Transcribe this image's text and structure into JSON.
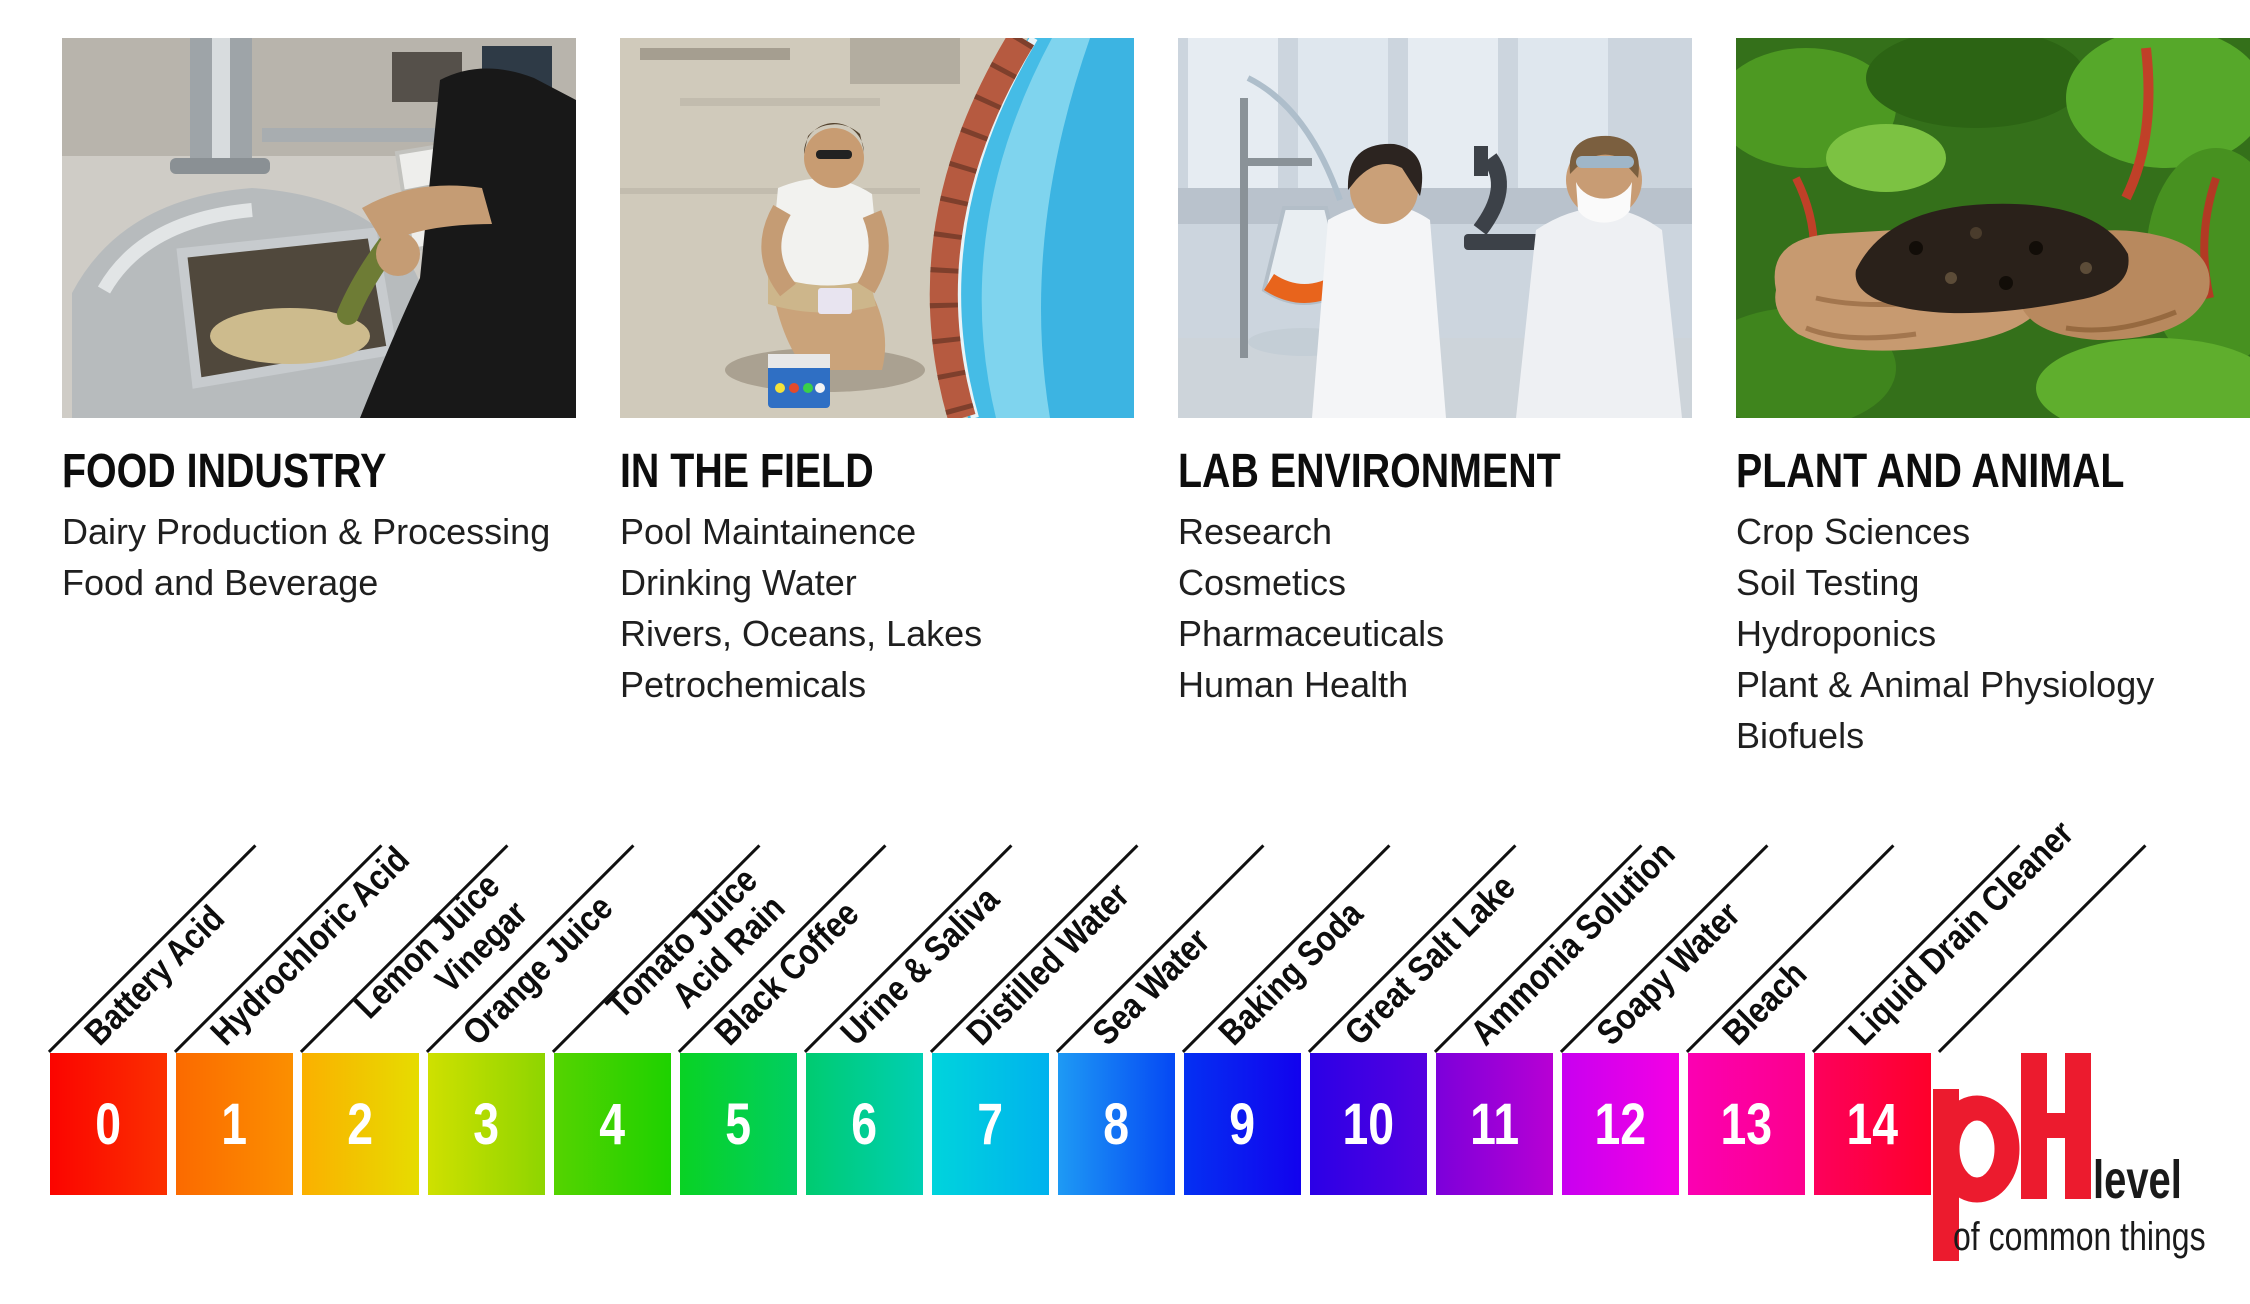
{
  "sections": [
    {
      "title": "FOOD INDUSTRY",
      "photo": "brewery-pouring-hops",
      "items": [
        "Dairy Production & Processing",
        "Food and Beverage"
      ]
    },
    {
      "title": "IN THE FIELD",
      "photo": "pool-water-testing",
      "items": [
        "Pool Maintainence",
        "Drinking Water",
        "Rivers, Oceans, Lakes",
        "Petrochemicals"
      ]
    },
    {
      "title": "LAB ENVIRONMENT",
      "photo": "laboratory-researchers",
      "items": [
        "Research",
        "Cosmetics",
        "Pharmaceuticals",
        "Human Health"
      ]
    },
    {
      "title": "PLANT AND ANIMAL",
      "photo": "hands-holding-soil",
      "items": [
        "Crop Sciences",
        "Soil Testing",
        "Hydroponics",
        "Plant & Animal Physiology",
        "Biofuels"
      ]
    }
  ],
  "scale": {
    "number_color": "#ffffff",
    "line_color": "#101010",
    "levels": [
      {
        "ph": "0",
        "label_lines": [
          "Battery Acid"
        ],
        "color_start": "#fb0400",
        "color_end": "#fb3000"
      },
      {
        "ph": "1",
        "label_lines": [
          "Hydrochloric Acid"
        ],
        "color_start": "#fb6a00",
        "color_end": "#fb8f00"
      },
      {
        "ph": "2",
        "label_lines": [
          "Lemon Juice",
          "Vinegar"
        ],
        "color_start": "#fbb000",
        "color_end": "#e6dc00"
      },
      {
        "ph": "3",
        "label_lines": [
          "Orange Juice"
        ],
        "color_start": "#cfe000",
        "color_end": "#8ed500"
      },
      {
        "ph": "4",
        "label_lines": [
          "Tomato Juice",
          "Acid Rain"
        ],
        "color_start": "#55d300",
        "color_end": "#1ed200"
      },
      {
        "ph": "5",
        "label_lines": [
          "Black Coffee"
        ],
        "color_start": "#09d224",
        "color_end": "#00ce62"
      },
      {
        "ph": "6",
        "label_lines": [
          "Urine & Saliva"
        ],
        "color_start": "#00cb70",
        "color_end": "#00cfb4"
      },
      {
        "ph": "7",
        "label_lines": [
          "Distilled Water"
        ],
        "color_start": "#00d4dc",
        "color_end": "#00b2ee"
      },
      {
        "ph": "8",
        "label_lines": [
          "Sea Water"
        ],
        "color_start": "#1e9af4",
        "color_end": "#0548f4"
      },
      {
        "ph": "9",
        "label_lines": [
          "Baking Soda"
        ],
        "color_start": "#0430f2",
        "color_end": "#1202ee"
      },
      {
        "ph": "10",
        "label_lines": [
          "Great Salt Lake"
        ],
        "color_start": "#2b00e6",
        "color_end": "#5600e0"
      },
      {
        "ph": "11",
        "label_lines": [
          "Ammonia Solution"
        ],
        "color_start": "#7c00da",
        "color_end": "#b800d4"
      },
      {
        "ph": "12",
        "label_lines": [
          "Soapy Water"
        ],
        "color_start": "#c800f0",
        "color_end": "#f400e4"
      },
      {
        "ph": "13",
        "label_lines": [
          "Bleach"
        ],
        "color_start": "#fb00b2",
        "color_end": "#fc008c"
      },
      {
        "ph": "14",
        "label_lines": [
          "Liquid Drain Cleaner"
        ],
        "color_start": "#fd005c",
        "color_end": "#fe002a"
      }
    ]
  },
  "logo": {
    "word": "pH",
    "level": "level",
    "subtitle": "of common things",
    "red": "#ec1b2e",
    "black": "#1a1a1a"
  }
}
